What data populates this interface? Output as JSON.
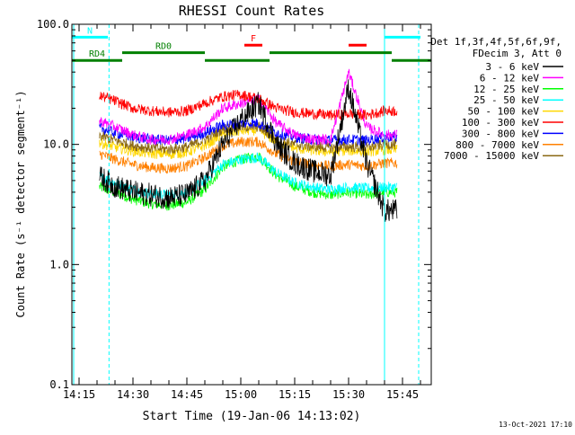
{
  "chart_data": {
    "type": "line",
    "title": "RHESSI Count Rates",
    "xlabel": "Start Time (19-Jan-06 14:13:02)",
    "ylabel": "Count Rate (s⁻¹ detector segment⁻¹)",
    "y_scale": "log",
    "ylim": [
      0.1,
      100.0
    ],
    "xlim": [
      "14:13:00",
      "15:53:00"
    ],
    "x_ticks": [
      "14:15",
      "14:30",
      "14:45",
      "15:00",
      "15:15",
      "15:30",
      "15:45"
    ],
    "y_ticks": [
      "0.1",
      "1.0",
      "10.0",
      "100.0"
    ],
    "legend_placement": "right",
    "legend_header": [
      "Det 1f,3f,4f,5f,6f,9f,",
      "FDecim 3, Att 0"
    ],
    "timestamp": "13-Oct-2021 17:10",
    "series": [
      {
        "name": "3 - 6 keV",
        "color": "#000000",
        "x": [
          "14:20",
          "14:25",
          "14:30",
          "14:35",
          "14:40",
          "14:45",
          "14:50",
          "14:55",
          "15:00",
          "15:05",
          "15:10",
          "15:15",
          "15:20",
          "15:25",
          "15:30",
          "15:35",
          "15:40"
        ],
        "values": [
          5.5,
          4.5,
          4.0,
          3.8,
          3.6,
          3.8,
          5.0,
          10.0,
          16.0,
          22.0,
          10.0,
          7.0,
          6.0,
          5.5,
          30.0,
          7.0,
          2.8
        ]
      },
      {
        "name": "6 - 12 keV",
        "color": "#ff00ff",
        "x": [
          "14:20",
          "14:25",
          "14:30",
          "14:35",
          "14:40",
          "14:45",
          "14:50",
          "14:55",
          "15:00",
          "15:05",
          "15:10",
          "15:15",
          "15:20",
          "15:25",
          "15:30",
          "15:35",
          "15:40"
        ],
        "values": [
          16,
          14,
          12,
          11,
          11,
          12,
          14,
          20,
          22,
          24,
          15,
          12,
          11,
          11,
          40,
          14,
          12
        ]
      },
      {
        "name": "12 - 25 keV",
        "color": "#00ff00",
        "x": [
          "14:20",
          "14:25",
          "14:30",
          "14:35",
          "14:40",
          "14:45",
          "14:50",
          "14:55",
          "15:00",
          "15:05",
          "15:10",
          "15:15",
          "15:20",
          "15:25",
          "15:30",
          "15:35",
          "15:40"
        ],
        "values": [
          4.5,
          4.0,
          3.5,
          3.2,
          3.1,
          3.3,
          4.2,
          6.5,
          7.5,
          8.0,
          5.5,
          4.5,
          4.0,
          3.8,
          4.0,
          3.8,
          4.0
        ]
      },
      {
        "name": "25 - 50 keV",
        "color": "#00ffff",
        "x": [
          "14:20",
          "14:25",
          "14:30",
          "14:35",
          "14:40",
          "14:45",
          "14:50",
          "14:55",
          "15:00",
          "15:05",
          "15:10",
          "15:15",
          "15:20",
          "15:25",
          "15:30",
          "15:35",
          "15:40"
        ],
        "values": [
          5.5,
          4.8,
          4.2,
          3.9,
          3.8,
          4.0,
          5.0,
          6.8,
          7.5,
          7.8,
          5.8,
          4.8,
          4.4,
          4.2,
          4.4,
          4.3,
          4.4
        ]
      },
      {
        "name": "50 - 100 keV",
        "color": "#ffd700",
        "x": [
          "14:20",
          "14:25",
          "14:30",
          "14:35",
          "14:40",
          "14:45",
          "14:50",
          "14:55",
          "15:00",
          "15:05",
          "15:10",
          "15:15",
          "15:20",
          "15:25",
          "15:30",
          "15:35",
          "15:40"
        ],
        "values": [
          10.5,
          9.5,
          8.8,
          8.4,
          8.3,
          8.6,
          9.8,
          12.0,
          13.0,
          13.2,
          10.5,
          9.3,
          8.9,
          8.7,
          8.9,
          8.7,
          9.0
        ]
      },
      {
        "name": "100 - 300 keV",
        "color": "#ff0000",
        "x": [
          "14:20",
          "14:25",
          "14:30",
          "14:35",
          "14:40",
          "14:45",
          "14:50",
          "14:55",
          "15:00",
          "15:05",
          "15:10",
          "15:15",
          "15:20",
          "15:25",
          "15:30",
          "15:35",
          "15:40"
        ],
        "values": [
          26,
          23,
          20,
          19,
          18.5,
          19,
          22,
          25,
          26,
          24,
          20,
          18.5,
          18,
          17.5,
          18,
          17.5,
          19
        ]
      },
      {
        "name": "300 - 800 keV",
        "color": "#0000ff",
        "x": [
          "14:20",
          "14:25",
          "14:30",
          "14:35",
          "14:40",
          "14:45",
          "14:50",
          "14:55",
          "15:00",
          "15:05",
          "15:10",
          "15:15",
          "15:20",
          "15:25",
          "15:30",
          "15:35",
          "15:40"
        ],
        "values": [
          14,
          12.5,
          11.5,
          11,
          10.8,
          11.2,
          12.5,
          14.5,
          15,
          15,
          12.5,
          11.5,
          11,
          10.8,
          11,
          10.8,
          11.5
        ]
      },
      {
        "name": "800 - 7000 keV",
        "color": "#ff8000",
        "x": [
          "14:20",
          "14:25",
          "14:30",
          "14:35",
          "14:40",
          "14:45",
          "14:50",
          "14:55",
          "15:00",
          "15:05",
          "15:10",
          "15:15",
          "15:20",
          "15:25",
          "15:30",
          "15:35",
          "15:40"
        ],
        "values": [
          8.5,
          7.5,
          6.8,
          6.4,
          6.3,
          6.6,
          7.8,
          9.8,
          10.5,
          10.5,
          8.3,
          7.2,
          6.8,
          6.6,
          6.8,
          6.6,
          7.0
        ]
      },
      {
        "name": "7000 - 15000 keV",
        "color": "#8b6914",
        "x": [
          "14:20",
          "14:25",
          "14:30",
          "14:35",
          "14:40",
          "14:45",
          "14:50",
          "14:55",
          "15:00",
          "15:05",
          "15:10",
          "15:15",
          "15:20",
          "15:25",
          "15:30",
          "15:35",
          "15:40"
        ],
        "values": [
          12,
          10.8,
          9.8,
          9.3,
          9.1,
          9.5,
          11,
          13.5,
          14,
          14,
          11,
          10,
          9.6,
          9.4,
          9.6,
          9.4,
          10
        ]
      }
    ],
    "annotations": [
      {
        "label": "N",
        "color": "#00ffff",
        "start": "14:13",
        "end": "14:23",
        "y": 78
      },
      {
        "label": "RD0",
        "color": "#008000",
        "start": "14:27",
        "end": "14:50",
        "y": 58
      },
      {
        "label": "RD4",
        "color": "#008000",
        "start": "14:13",
        "end": "14:27",
        "y": 50
      },
      {
        "label": "",
        "color": "#008000",
        "start": "14:50",
        "end": "15:08",
        "y": 50
      },
      {
        "label": "",
        "color": "#008000",
        "start": "15:08",
        "end": "15:42",
        "y": 58
      },
      {
        "label": "",
        "color": "#008000",
        "start": "15:42",
        "end": "15:53",
        "y": 50
      },
      {
        "label": "F",
        "color": "#ff0000",
        "start": "15:01",
        "end": "15:06",
        "y": 67
      },
      {
        "label": "",
        "color": "#ff0000",
        "start": "15:30",
        "end": "15:35",
        "y": 67
      },
      {
        "label": "",
        "color": "#00ffff",
        "start": "15:40",
        "end": "15:50",
        "y": 78
      }
    ],
    "vertical_lines": [
      {
        "time": "14:13:30",
        "color": "#00ffff",
        "style": "solid"
      },
      {
        "time": "14:23:20",
        "color": "#00ffff",
        "style": "dashed"
      },
      {
        "time": "15:40:00",
        "color": "#00ffff",
        "style": "solid"
      },
      {
        "time": "15:49:30",
        "color": "#00ffff",
        "style": "dashed"
      }
    ]
  }
}
